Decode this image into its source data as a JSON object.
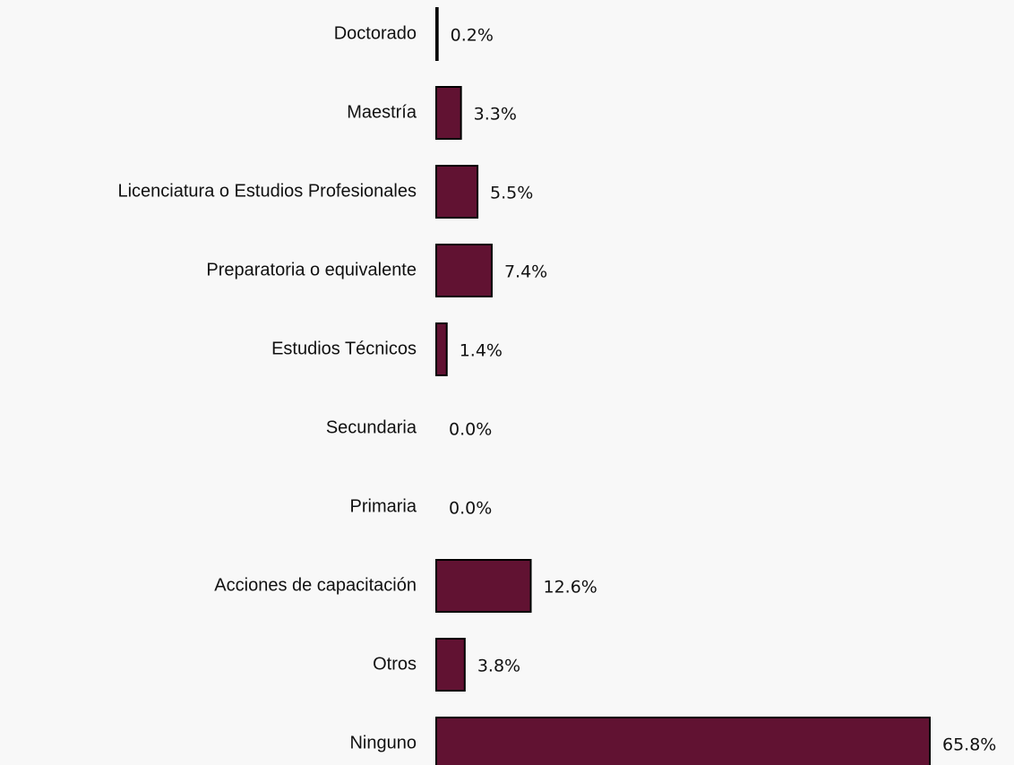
{
  "chart_data": {
    "type": "hbar",
    "categories": [
      "Doctorado",
      "Maestría",
      "Licenciatura o Estudios Profesionales",
      "Preparatoria o equivalente",
      "Estudios Técnicos",
      "Secundaria",
      "Primaria",
      "Acciones de capacitación",
      "Otros",
      "Ninguno"
    ],
    "values": [
      0.2,
      3.3,
      5.5,
      7.4,
      1.4,
      0.0,
      0.0,
      12.6,
      3.8,
      65.8
    ],
    "value_labels": [
      "0.2%",
      "3.3%",
      "5.5%",
      "7.4%",
      "1.4%",
      "0.0%",
      "0.0%",
      "12.6%",
      "3.8%",
      "65.8%"
    ],
    "color": "#611232"
  }
}
